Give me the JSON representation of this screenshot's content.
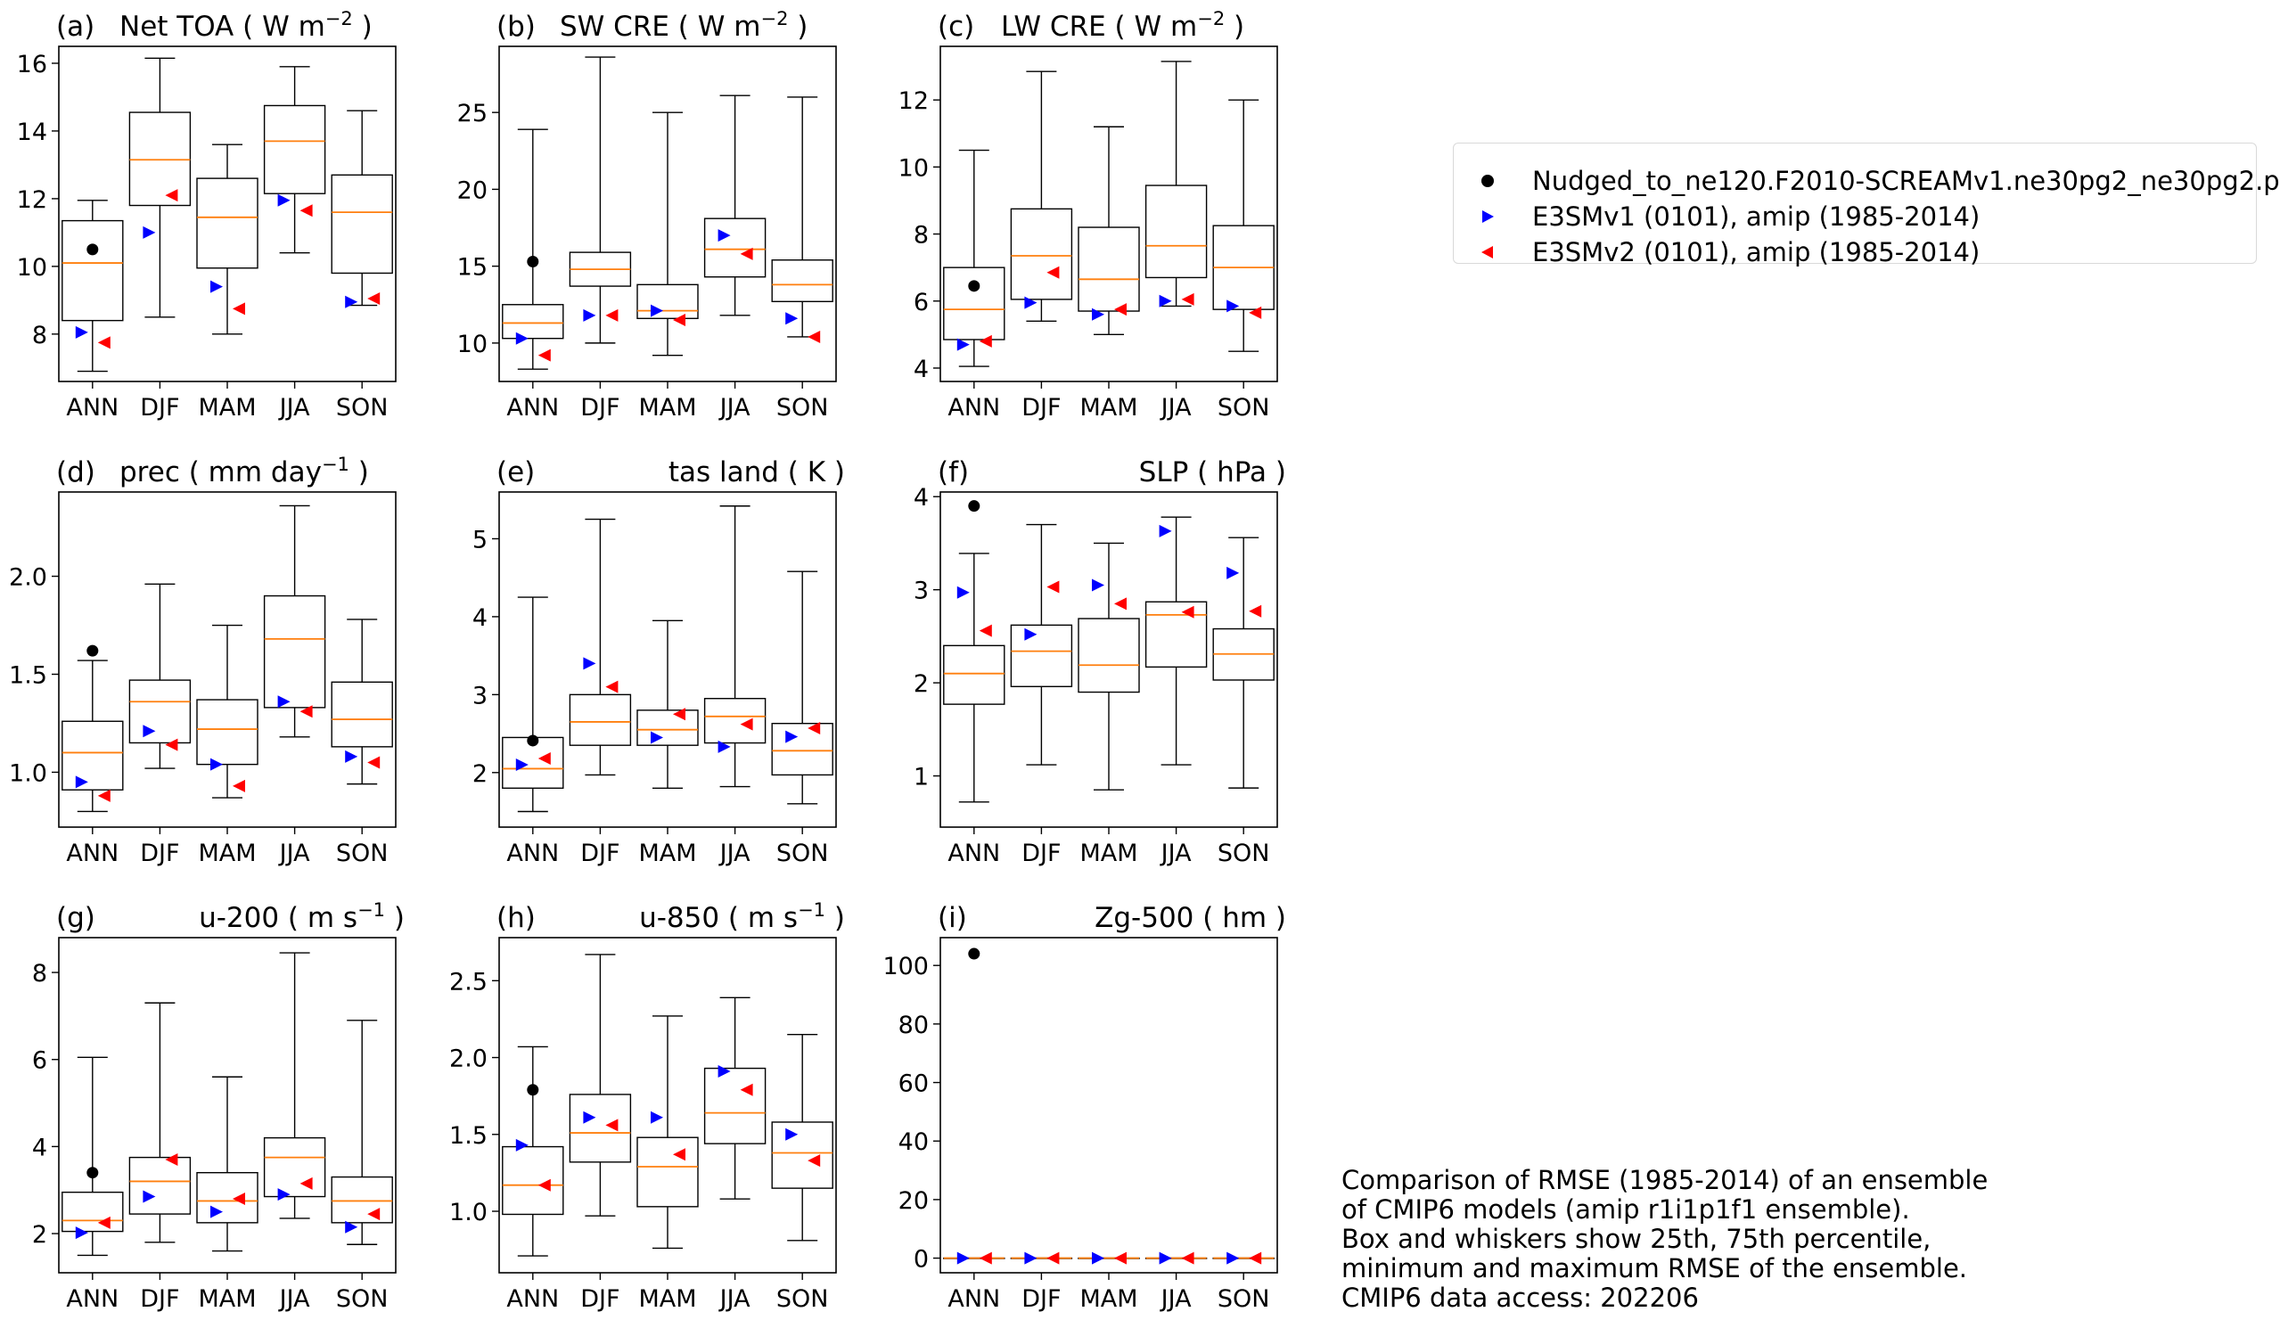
{
  "colors": {
    "median": "#ff7f0e",
    "nudged": "#000000",
    "e3smv1": "#0000ff",
    "e3smv2": "#ff0000",
    "box": "#000000"
  },
  "legend": {
    "nudged": "Nudged_to_ne120.F2010-SCREAMv1.ne30pg2_ne30pg2.p",
    "e3smv1": "E3SMv1 (0101), amip (1985-2014)",
    "e3smv2": "E3SMv2 (0101), amip (1985-2014)"
  },
  "note": [
    "Comparison of RMSE (1985-2014) of an ensemble",
    "of CMIP6 models (amip r1i1p1f1 ensemble).",
    "Box and whiskers show 25th, 75th percentile,",
    "minimum and maximum RMSE of the ensemble.",
    "CMIP6 data access: 202206"
  ],
  "chart_data": [
    {
      "type": "box",
      "panel": "(a)",
      "title": "Net TOA",
      "units_base": "W m",
      "units_sup": "−2",
      "title_align": "left",
      "categories": [
        "ANN",
        "DJF",
        "MAM",
        "JJA",
        "SON"
      ],
      "ylim": [
        6.6,
        16.5
      ],
      "yticks": [
        8,
        10,
        12,
        14,
        16
      ],
      "ytick_labels": [
        "8",
        "10",
        "12",
        "14",
        "16"
      ],
      "boxes": [
        {
          "min": 6.9,
          "q1": 8.4,
          "median": 10.1,
          "q3": 11.35,
          "max": 11.95
        },
        {
          "min": 8.5,
          "q1": 11.8,
          "median": 13.15,
          "q3": 14.55,
          "max": 16.15
        },
        {
          "min": 8.0,
          "q1": 9.95,
          "median": 11.45,
          "q3": 12.6,
          "max": 13.6
        },
        {
          "min": 10.4,
          "q1": 12.15,
          "median": 13.7,
          "q3": 14.75,
          "max": 15.9
        },
        {
          "min": 8.85,
          "q1": 9.8,
          "median": 11.6,
          "q3": 12.7,
          "max": 14.6
        }
      ],
      "nudged": [
        10.5,
        null,
        null,
        null,
        null
      ],
      "e3smv1": [
        8.05,
        11.0,
        9.4,
        11.95,
        8.95
      ],
      "e3smv2": [
        7.75,
        12.1,
        8.75,
        11.65,
        9.05
      ]
    },
    {
      "type": "box",
      "panel": "(b)",
      "title": "SW CRE",
      "units_base": "W m",
      "units_sup": "−2",
      "title_align": "left",
      "categories": [
        "ANN",
        "DJF",
        "MAM",
        "JJA",
        "SON"
      ],
      "ylim": [
        7.5,
        29.3
      ],
      "yticks": [
        10,
        15,
        20,
        25
      ],
      "ytick_labels": [
        "10",
        "15",
        "20",
        "25"
      ],
      "boxes": [
        {
          "min": 8.3,
          "q1": 10.3,
          "median": 11.3,
          "q3": 12.5,
          "max": 23.9
        },
        {
          "min": 10.0,
          "q1": 13.7,
          "median": 14.8,
          "q3": 15.9,
          "max": 28.6
        },
        {
          "min": 9.2,
          "q1": 11.6,
          "median": 12.1,
          "q3": 13.8,
          "max": 25.0
        },
        {
          "min": 11.8,
          "q1": 14.3,
          "median": 16.1,
          "q3": 18.1,
          "max": 26.1
        },
        {
          "min": 10.4,
          "q1": 12.7,
          "median": 13.8,
          "q3": 15.4,
          "max": 26.0
        }
      ],
      "nudged": [
        15.3,
        null,
        null,
        null,
        null
      ],
      "e3smv1": [
        10.3,
        11.8,
        12.1,
        17.0,
        11.6
      ],
      "e3smv2": [
        9.2,
        11.8,
        11.5,
        15.8,
        10.4
      ]
    },
    {
      "type": "box",
      "panel": "(c)",
      "title": "LW CRE",
      "units_base": "W m",
      "units_sup": "−2",
      "title_align": "left",
      "categories": [
        "ANN",
        "DJF",
        "MAM",
        "JJA",
        "SON"
      ],
      "ylim": [
        3.6,
        13.6
      ],
      "yticks": [
        4,
        6,
        8,
        10,
        12
      ],
      "ytick_labels": [
        "4",
        "6",
        "8",
        "10",
        "12"
      ],
      "boxes": [
        {
          "min": 4.05,
          "q1": 4.85,
          "median": 5.75,
          "q3": 7.0,
          "max": 10.5
        },
        {
          "min": 5.4,
          "q1": 6.05,
          "median": 7.35,
          "q3": 8.75,
          "max": 12.85
        },
        {
          "min": 5.0,
          "q1": 5.7,
          "median": 6.65,
          "q3": 8.2,
          "max": 11.2
        },
        {
          "min": 5.85,
          "q1": 6.7,
          "median": 7.65,
          "q3": 9.45,
          "max": 13.15
        },
        {
          "min": 4.5,
          "q1": 5.75,
          "median": 7.0,
          "q3": 8.25,
          "max": 12.0
        }
      ],
      "nudged": [
        6.45,
        null,
        null,
        null,
        null
      ],
      "e3smv1": [
        4.7,
        5.95,
        5.6,
        6.0,
        5.85
      ],
      "e3smv2": [
        4.8,
        6.85,
        5.75,
        6.05,
        5.65
      ]
    },
    {
      "type": "box",
      "panel": "(d)",
      "title": "prec",
      "units_base": "mm day",
      "units_sup": "−1",
      "title_align": "left",
      "categories": [
        "ANN",
        "DJF",
        "MAM",
        "JJA",
        "SON"
      ],
      "ylim": [
        0.72,
        2.43
      ],
      "yticks": [
        1.0,
        1.5,
        2.0
      ],
      "ytick_labels": [
        "1.0",
        "1.5",
        "2.0"
      ],
      "boxes": [
        {
          "min": 0.8,
          "q1": 0.91,
          "median": 1.1,
          "q3": 1.26,
          "max": 1.57
        },
        {
          "min": 1.02,
          "q1": 1.15,
          "median": 1.36,
          "q3": 1.47,
          "max": 1.96
        },
        {
          "min": 0.87,
          "q1": 1.04,
          "median": 1.22,
          "q3": 1.37,
          "max": 1.75
        },
        {
          "min": 1.18,
          "q1": 1.33,
          "median": 1.68,
          "q3": 1.9,
          "max": 2.36
        },
        {
          "min": 0.94,
          "q1": 1.13,
          "median": 1.27,
          "q3": 1.46,
          "max": 1.78
        }
      ],
      "nudged": [
        1.62,
        null,
        null,
        null,
        null
      ],
      "e3smv1": [
        0.95,
        1.21,
        1.04,
        1.36,
        1.08
      ],
      "e3smv2": [
        0.88,
        1.14,
        0.93,
        1.31,
        1.05
      ]
    },
    {
      "type": "box",
      "panel": "(e)",
      "title": "tas land",
      "units_base": "K",
      "units_sup": "",
      "title_align": "right",
      "categories": [
        "ANN",
        "DJF",
        "MAM",
        "JJA",
        "SON"
      ],
      "ylim": [
        1.3,
        5.6
      ],
      "yticks": [
        2,
        3,
        4,
        5
      ],
      "ytick_labels": [
        "2",
        "3",
        "4",
        "5"
      ],
      "boxes": [
        {
          "min": 1.5,
          "q1": 1.8,
          "median": 2.05,
          "q3": 2.45,
          "max": 4.25
        },
        {
          "min": 1.97,
          "q1": 2.35,
          "median": 2.65,
          "q3": 3.0,
          "max": 5.25
        },
        {
          "min": 1.8,
          "q1": 2.35,
          "median": 2.55,
          "q3": 2.8,
          "max": 3.95
        },
        {
          "min": 1.82,
          "q1": 2.38,
          "median": 2.72,
          "q3": 2.95,
          "max": 5.42
        },
        {
          "min": 1.6,
          "q1": 1.97,
          "median": 2.28,
          "q3": 2.63,
          "max": 4.58
        }
      ],
      "nudged": [
        2.41,
        null,
        null,
        null,
        null
      ],
      "e3smv1": [
        2.1,
        3.4,
        2.45,
        2.33,
        2.46
      ],
      "e3smv2": [
        2.18,
        3.1,
        2.75,
        2.62,
        2.57
      ]
    },
    {
      "type": "box",
      "panel": "(f)",
      "title": "SLP",
      "units_base": "hPa",
      "units_sup": "",
      "title_align": "right",
      "categories": [
        "ANN",
        "DJF",
        "MAM",
        "JJA",
        "SON"
      ],
      "ylim": [
        0.45,
        4.05
      ],
      "yticks": [
        1,
        2,
        3,
        4
      ],
      "ytick_labels": [
        "1",
        "2",
        "3",
        "4"
      ],
      "boxes": [
        {
          "min": 0.72,
          "q1": 1.77,
          "median": 2.1,
          "q3": 2.4,
          "max": 3.39
        },
        {
          "min": 1.12,
          "q1": 1.96,
          "median": 2.34,
          "q3": 2.62,
          "max": 3.7
        },
        {
          "min": 0.85,
          "q1": 1.9,
          "median": 2.19,
          "q3": 2.69,
          "max": 3.5
        },
        {
          "min": 1.12,
          "q1": 2.17,
          "median": 2.73,
          "q3": 2.87,
          "max": 3.78
        },
        {
          "min": 0.87,
          "q1": 2.03,
          "median": 2.31,
          "q3": 2.58,
          "max": 3.56
        }
      ],
      "nudged": [
        3.9,
        null,
        null,
        null,
        null
      ],
      "e3smv1": [
        2.97,
        2.52,
        3.05,
        3.63,
        3.18
      ],
      "e3smv2": [
        2.56,
        3.03,
        2.85,
        2.76,
        2.77
      ]
    },
    {
      "type": "box",
      "panel": "(g)",
      "title": "u-200",
      "units_base": "m s",
      "units_sup": "−1",
      "title_align": "right",
      "categories": [
        "ANN",
        "DJF",
        "MAM",
        "JJA",
        "SON"
      ],
      "ylim": [
        1.1,
        8.8
      ],
      "yticks": [
        2,
        4,
        6,
        8
      ],
      "ytick_labels": [
        "2",
        "4",
        "6",
        "8"
      ],
      "boxes": [
        {
          "min": 1.5,
          "q1": 2.05,
          "median": 2.3,
          "q3": 2.95,
          "max": 6.05
        },
        {
          "min": 1.8,
          "q1": 2.45,
          "median": 3.2,
          "q3": 3.75,
          "max": 7.3
        },
        {
          "min": 1.6,
          "q1": 2.25,
          "median": 2.75,
          "q3": 3.4,
          "max": 5.6
        },
        {
          "min": 2.35,
          "q1": 2.85,
          "median": 3.75,
          "q3": 4.2,
          "max": 8.45
        },
        {
          "min": 1.75,
          "q1": 2.25,
          "median": 2.75,
          "q3": 3.3,
          "max": 6.9
        }
      ],
      "nudged": [
        3.4,
        null,
        null,
        null,
        null
      ],
      "e3smv1": [
        2.02,
        2.85,
        2.5,
        2.9,
        2.15
      ],
      "e3smv2": [
        2.25,
        3.7,
        2.8,
        3.15,
        2.45
      ]
    },
    {
      "type": "box",
      "panel": "(h)",
      "title": "u-850",
      "units_base": "m s",
      "units_sup": "−1",
      "title_align": "right",
      "categories": [
        "ANN",
        "DJF",
        "MAM",
        "JJA",
        "SON"
      ],
      "ylim": [
        0.6,
        2.78
      ],
      "yticks": [
        1.0,
        1.5,
        2.0,
        2.5
      ],
      "ytick_labels": [
        "1.0",
        "1.5",
        "2.0",
        "2.5"
      ],
      "boxes": [
        {
          "min": 0.71,
          "q1": 0.98,
          "median": 1.17,
          "q3": 1.42,
          "max": 2.07
        },
        {
          "min": 0.97,
          "q1": 1.32,
          "median": 1.51,
          "q3": 1.76,
          "max": 2.67
        },
        {
          "min": 0.76,
          "q1": 1.03,
          "median": 1.29,
          "q3": 1.48,
          "max": 2.27
        },
        {
          "min": 1.08,
          "q1": 1.44,
          "median": 1.64,
          "q3": 1.93,
          "max": 2.39
        },
        {
          "min": 0.81,
          "q1": 1.15,
          "median": 1.38,
          "q3": 1.58,
          "max": 2.15
        }
      ],
      "nudged": [
        1.79,
        null,
        null,
        null,
        null
      ],
      "e3smv1": [
        1.43,
        1.61,
        1.61,
        1.91,
        1.5
      ],
      "e3smv2": [
        1.17,
        1.56,
        1.37,
        1.79,
        1.33
      ]
    },
    {
      "type": "box",
      "panel": "(i)",
      "title": "Zg-500",
      "units_base": "hm",
      "units_sup": "",
      "title_align": "right",
      "categories": [
        "ANN",
        "DJF",
        "MAM",
        "JJA",
        "SON"
      ],
      "ylim": [
        -5,
        109.5
      ],
      "yticks": [
        0,
        20,
        40,
        60,
        80,
        100
      ],
      "ytick_labels": [
        "0",
        "20",
        "40",
        "60",
        "80",
        "100"
      ],
      "boxes": [
        {
          "min": 0,
          "q1": 0,
          "median": 0,
          "q3": 0,
          "max": 0
        },
        {
          "min": 0,
          "q1": 0,
          "median": 0,
          "q3": 0,
          "max": 0
        },
        {
          "min": 0,
          "q1": 0,
          "median": 0,
          "q3": 0,
          "max": 0
        },
        {
          "min": 0,
          "q1": 0,
          "median": 0,
          "q3": 0,
          "max": 0
        },
        {
          "min": 0,
          "q1": 0,
          "median": 0,
          "q3": 0,
          "max": 0
        }
      ],
      "nudged": [
        104,
        null,
        null,
        null,
        null
      ],
      "e3smv1": [
        0,
        0,
        0,
        0,
        0
      ],
      "e3smv2": [
        0,
        0,
        0,
        0,
        0
      ]
    }
  ]
}
